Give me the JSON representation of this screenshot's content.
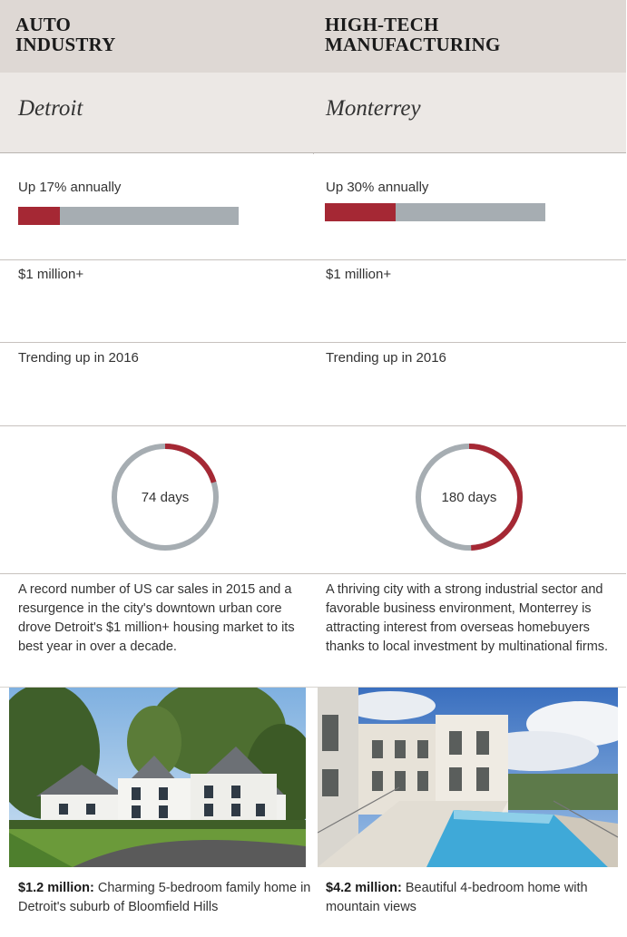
{
  "columns": [
    {
      "industry": "AUTO INDUSTRY",
      "city": "Detroit",
      "growth_text": "Up 17% annually",
      "growth_fraction": 0.19,
      "price_text": "$1 million+",
      "trend_text": "Trending up in 2016",
      "days_text": "74 days",
      "days_fraction": 0.203,
      "description": "A record number of US car sales in 2015 and a resurgence in the city's downtown urban core drove Detroit's $1 million+ housing market to its best year in over a decade.",
      "photo_caption_price": "$1.2 million:",
      "photo_caption_text": " Charming 5-bedroom family home in Detroit's suburb of Bloomfield Hills"
    },
    {
      "industry": "HIGH-TECH MANUFACTURING",
      "city": "Monterrey",
      "growth_text": "Up 30% annually",
      "growth_fraction": 0.32,
      "price_text": "$1 million+",
      "trend_text": "Trending up in 2016",
      "days_text": "180 days",
      "days_fraction": 0.493,
      "description": "A thriving city with a strong industrial sector and favorable business environment, Monterrey is attracting interest from overseas homebuyers thanks to local investment by multinational firms.",
      "photo_caption_price": "$4.2 million:",
      "photo_caption_text": " Beautiful 4-bedroom home with mountain views"
    }
  ],
  "colors": {
    "accent": "#a52834",
    "track": "#a6adb2",
    "header_band": "#ded8d4",
    "city_band": "#ece8e5"
  }
}
